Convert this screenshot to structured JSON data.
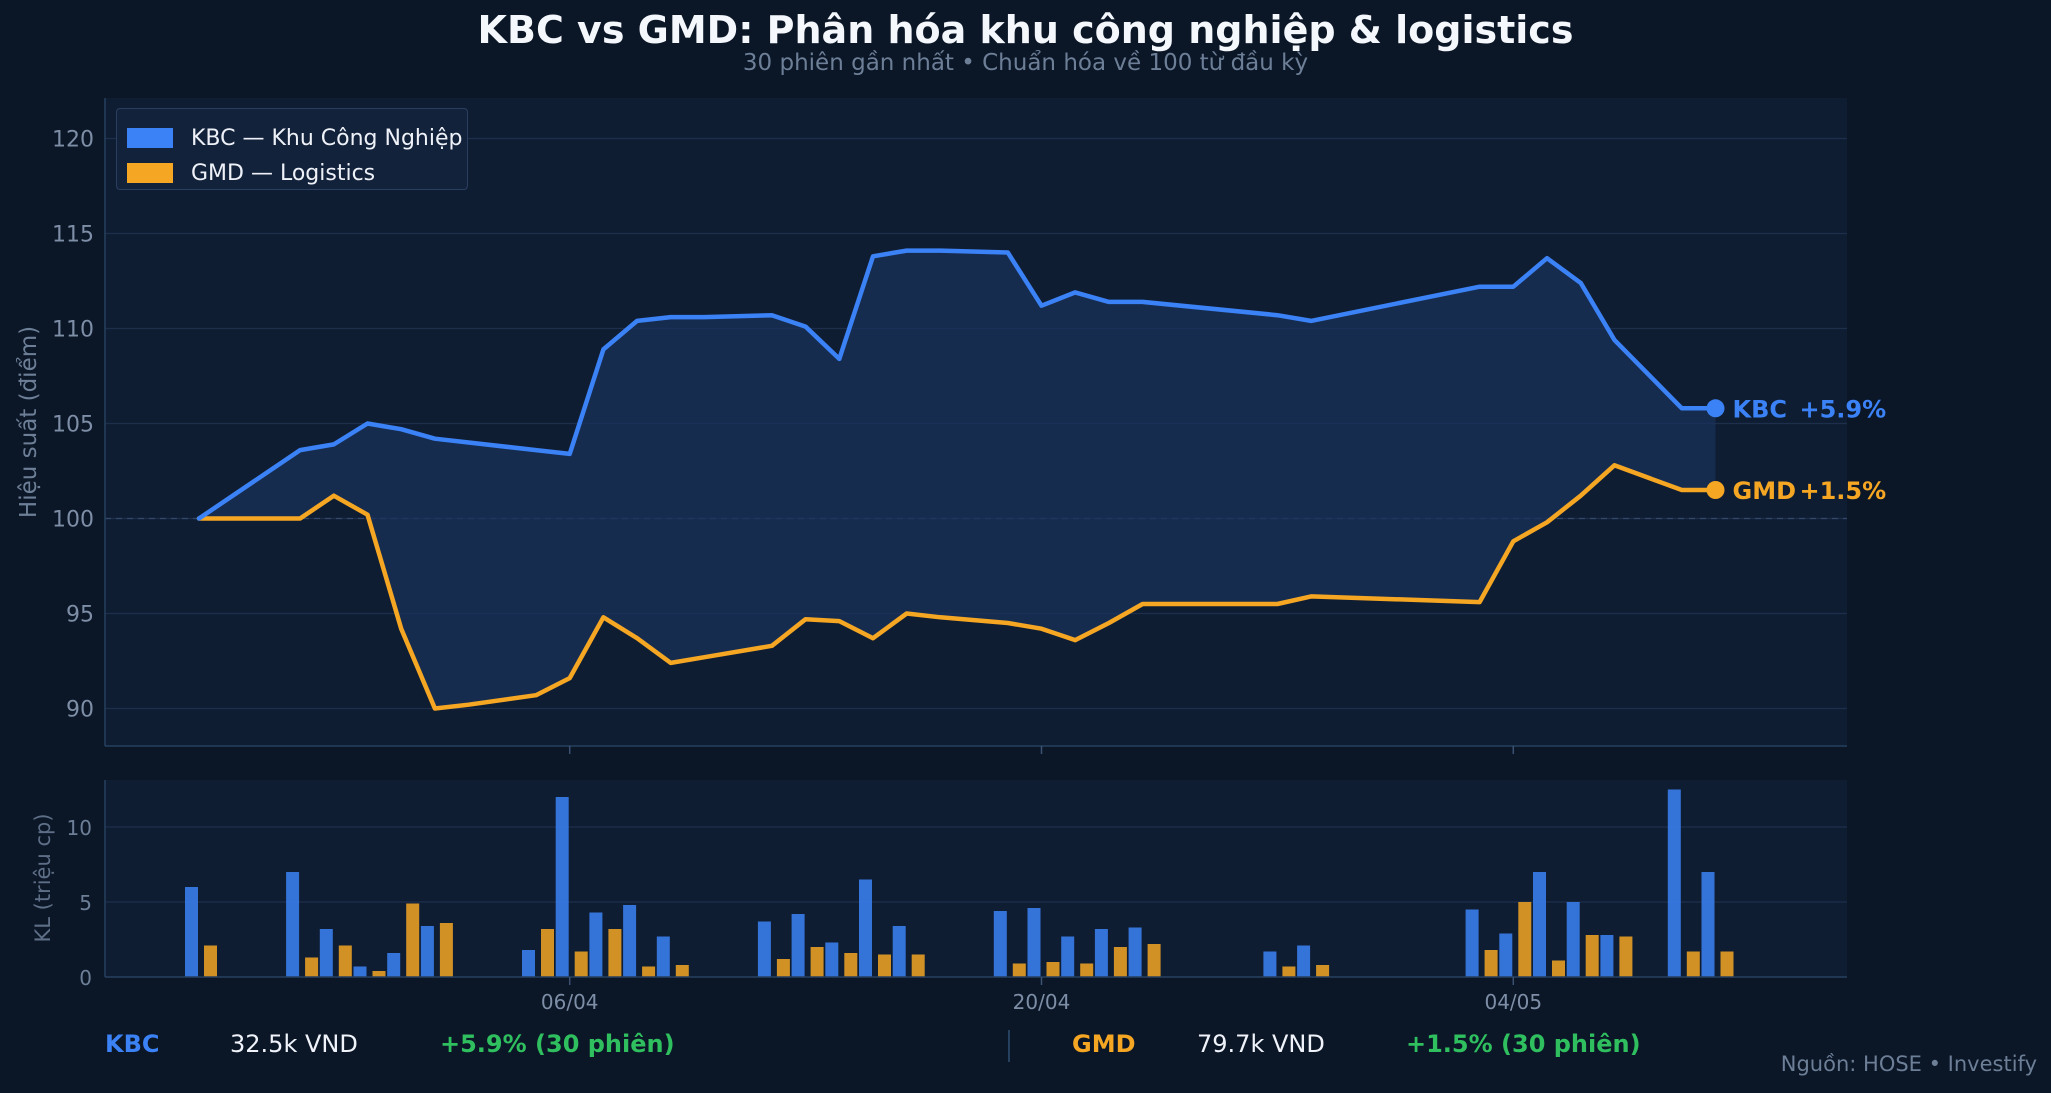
{
  "title": "KBC vs GMD: Phân hóa khu công nghiệp & logistics",
  "subtitle": "30 phiên gần nhất • Chuẩn hóa về 100 từ đầu kỳ",
  "colors": {
    "kbc": "#3b82f6",
    "gmd": "#f5a623",
    "positive": "#2fbf5f",
    "background": "#0b1627",
    "panel": "#0f1d33",
    "spread_fill": "#1a325a"
  },
  "legend": [
    {
      "label": "KBC — Khu Công Nghiệp",
      "color": "#3b82f6"
    },
    {
      "label": "GMD — Logistics",
      "color": "#f5a623"
    }
  ],
  "end_labels": [
    {
      "ticker": "KBC",
      "change": "+5.9%"
    },
    {
      "ticker": "GMD",
      "change": "+1.5%"
    }
  ],
  "footer": {
    "kbc": {
      "ticker": "KBC",
      "price": "32.5k VND",
      "change": "+5.9% (30 phiên)"
    },
    "gmd": {
      "ticker": "GMD",
      "price": "79.7k VND",
      "change": "+1.5% (30 phiên)"
    }
  },
  "source": "Nguồn: HOSE  •  Investify",
  "chart_data": [
    {
      "type": "line",
      "ylabel": "Hiệu suất (điểm)",
      "ylim": [
        88,
        122
      ],
      "yticks": [
        90,
        95,
        100,
        105,
        110,
        115,
        120
      ],
      "xticks": [
        "06/04",
        "20/04",
        "04/05"
      ],
      "grid": true,
      "legend_position": "top-left",
      "reference_line": 100,
      "x_day_index": [
        0,
        3,
        4,
        5,
        6,
        7,
        8,
        10,
        11,
        12,
        13,
        14,
        15,
        17,
        18,
        19,
        20,
        21,
        22,
        24,
        25,
        26,
        27,
        28,
        32,
        33,
        38,
        39,
        40,
        41,
        42,
        44,
        45
      ],
      "series": [
        {
          "name": "KBC — Khu Công Nghiệp",
          "values": [
            100,
            103.6,
            103.9,
            105.0,
            104.7,
            104.2,
            104.0,
            103.6,
            103.4,
            108.9,
            110.4,
            110.6,
            110.6,
            110.7,
            110.1,
            108.4,
            113.8,
            114.1,
            114.1,
            114.0,
            111.2,
            111.9,
            111.4,
            111.4,
            110.7,
            110.4,
            112.2,
            112.2,
            113.7,
            112.4,
            109.4,
            105.8,
            105.8
          ]
        },
        {
          "name": "GMD — Logistics",
          "values": [
            100,
            100,
            101.2,
            100.2,
            94.2,
            90.0,
            90.2,
            90.7,
            91.6,
            94.8,
            93.7,
            92.4,
            92.7,
            93.3,
            94.7,
            94.6,
            93.7,
            95.0,
            94.8,
            94.5,
            94.2,
            93.6,
            94.5,
            95.5,
            95.5,
            95.9,
            95.6,
            98.8,
            99.8,
            101.2,
            102.8,
            101.5,
            101.5
          ]
        }
      ]
    },
    {
      "type": "bar",
      "ylabel": "KL (triệu cp)",
      "ylim": [
        0,
        13
      ],
      "yticks": [
        0,
        5,
        10
      ],
      "xticks": [
        "06/04",
        "20/04",
        "04/05"
      ],
      "grid": true,
      "x_day_index": [
        0,
        3,
        4,
        5,
        6,
        7,
        8,
        10,
        11,
        12,
        13,
        14,
        15,
        17,
        18,
        19,
        20,
        21,
        22,
        24,
        25,
        26,
        27,
        28,
        32,
        33,
        38,
        39,
        40,
        41,
        42,
        44,
        45
      ],
      "series": [
        {
          "name": "KBC",
          "values": [
            6.0,
            7.0,
            3.2,
            0.7,
            1.6,
            3.4,
            null,
            1.8,
            12.0,
            4.3,
            4.8,
            2.7,
            null,
            3.7,
            4.2,
            2.3,
            6.5,
            3.4,
            null,
            4.4,
            4.6,
            2.7,
            3.2,
            3.3,
            1.7,
            2.1,
            4.5,
            2.9,
            7.0,
            5.0,
            2.8,
            12.5,
            7.0
          ]
        },
        {
          "name": "GMD",
          "values": [
            2.1,
            1.3,
            2.1,
            0.4,
            4.9,
            3.6,
            null,
            3.2,
            1.7,
            3.2,
            0.7,
            0.8,
            null,
            1.2,
            2.0,
            1.6,
            1.5,
            1.5,
            null,
            0.9,
            1.0,
            0.9,
            2.0,
            2.2,
            0.7,
            0.8,
            1.8,
            5.0,
            1.1,
            2.8,
            2.7,
            1.7,
            1.7
          ]
        }
      ]
    }
  ]
}
